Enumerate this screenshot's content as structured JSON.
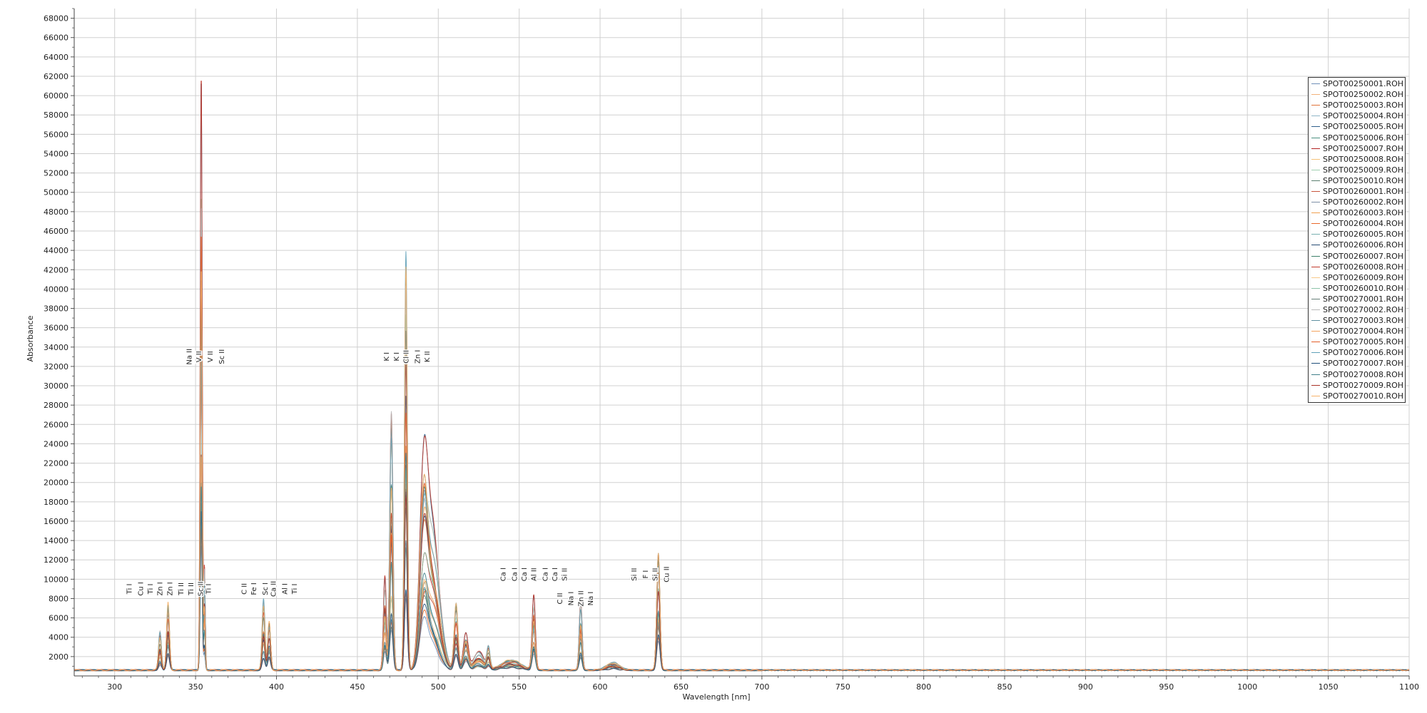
{
  "chart_data": {
    "type": "line",
    "xlabel": "Wavelength [nm]",
    "ylabel": "Absorbance",
    "xlim": [
      275,
      1100
    ],
    "ylim": [
      0,
      69000
    ],
    "x_ticks": [
      300,
      350,
      400,
      450,
      500,
      550,
      600,
      650,
      700,
      750,
      800,
      850,
      900,
      950,
      1000,
      1050,
      1100
    ],
    "y_ticks": [
      2000,
      4000,
      6000,
      8000,
      10000,
      12000,
      14000,
      16000,
      18000,
      20000,
      22000,
      24000,
      26000,
      28000,
      30000,
      32000,
      34000,
      36000,
      38000,
      40000,
      42000,
      44000,
      46000,
      48000,
      50000,
      52000,
      54000,
      56000,
      58000,
      60000,
      62000,
      64000,
      66000,
      68000
    ],
    "grid": true,
    "legend_position": "top-right",
    "baseline": 600,
    "series": [
      {
        "name": "SPOT00250001.ROH",
        "color": "#6f8fb8"
      },
      {
        "name": "SPOT00250002.ROH",
        "color": "#f2b27a"
      },
      {
        "name": "SPOT00250003.ROH",
        "color": "#e0733a"
      },
      {
        "name": "SPOT00250004.ROH",
        "color": "#8fb5c7"
      },
      {
        "name": "SPOT00250005.ROH",
        "color": "#2f5f8a"
      },
      {
        "name": "SPOT00250006.ROH",
        "color": "#4a8f7f"
      },
      {
        "name": "SPOT00250007.ROH",
        "color": "#b22222"
      },
      {
        "name": "SPOT00250008.ROH",
        "color": "#f5c27a"
      },
      {
        "name": "SPOT00250009.ROH",
        "color": "#9fd0b0"
      },
      {
        "name": "SPOT00250010.ROH",
        "color": "#5b7f6f"
      },
      {
        "name": "SPOT00260001.ROH",
        "color": "#c8553d"
      },
      {
        "name": "SPOT00260002.ROH",
        "color": "#7d8fa6"
      },
      {
        "name": "SPOT00260003.ROH",
        "color": "#f0a050"
      },
      {
        "name": "SPOT00260004.ROH",
        "color": "#e8682a"
      },
      {
        "name": "SPOT00260005.ROH",
        "color": "#78b0b0"
      },
      {
        "name": "SPOT00260006.ROH",
        "color": "#244b73"
      },
      {
        "name": "SPOT00260007.ROH",
        "color": "#3d7f6a"
      },
      {
        "name": "SPOT00260008.ROH",
        "color": "#c0392b"
      },
      {
        "name": "SPOT00260009.ROH",
        "color": "#f7c98a"
      },
      {
        "name": "SPOT00260010.ROH",
        "color": "#8cc3a8"
      },
      {
        "name": "SPOT00270001.ROH",
        "color": "#667f77"
      },
      {
        "name": "SPOT00270002.ROH",
        "color": "#b8b8b8"
      },
      {
        "name": "SPOT00270003.ROH",
        "color": "#5f8fa0"
      },
      {
        "name": "SPOT00270004.ROH",
        "color": "#f3a25e"
      },
      {
        "name": "SPOT00270005.ROH",
        "color": "#e35d2a"
      },
      {
        "name": "SPOT00270006.ROH",
        "color": "#5fa0b8"
      },
      {
        "name": "SPOT00270007.ROH",
        "color": "#1f4e79"
      },
      {
        "name": "SPOT00270008.ROH",
        "color": "#3f7f8a"
      },
      {
        "name": "SPOT00270009.ROH",
        "color": "#a93226"
      },
      {
        "name": "SPOT00270010.ROH",
        "color": "#f6b26b"
      }
    ],
    "peaks": [
      {
        "x": 328,
        "w": 0.9,
        "h": 4400
      },
      {
        "x": 333,
        "w": 0.9,
        "h": 8500
      },
      {
        "x": 353.5,
        "w": 0.6,
        "h": 65500
      },
      {
        "x": 355.5,
        "w": 0.5,
        "h": 11000
      },
      {
        "x": 392,
        "w": 0.9,
        "h": 8300
      },
      {
        "x": 395.5,
        "w": 0.9,
        "h": 6300
      },
      {
        "x": 467,
        "w": 0.9,
        "h": 10000
      },
      {
        "x": 471,
        "w": 1.0,
        "h": 28400
      },
      {
        "x": 480,
        "w": 0.9,
        "h": 50200
      },
      {
        "x": 491,
        "w": 2.5,
        "h": 24800
      },
      {
        "x": 496,
        "w": 3.0,
        "h": 11500
      },
      {
        "x": 500,
        "w": 3.5,
        "h": 6000
      },
      {
        "x": 511,
        "w": 1.2,
        "h": 8300
      },
      {
        "x": 517,
        "w": 1.5,
        "h": 4300
      },
      {
        "x": 525,
        "w": 3.0,
        "h": 2000
      },
      {
        "x": 531,
        "w": 1.0,
        "h": 2500
      },
      {
        "x": 545,
        "w": 6.0,
        "h": 1300
      },
      {
        "x": 559,
        "w": 1.0,
        "h": 8200
      },
      {
        "x": 588,
        "w": 0.9,
        "h": 7700
      },
      {
        "x": 608,
        "w": 4.0,
        "h": 900
      },
      {
        "x": 636,
        "w": 1.0,
        "h": 15500
      }
    ],
    "annotations": [
      {
        "x": 309,
        "y": 9000,
        "label": "Ti I"
      },
      {
        "x": 316,
        "y": 9000,
        "label": "Cu I"
      },
      {
        "x": 322,
        "y": 9000,
        "label": "Ti I"
      },
      {
        "x": 328,
        "y": 9000,
        "label": "Zn I"
      },
      {
        "x": 334,
        "y": 9000,
        "label": "Zn I"
      },
      {
        "x": 341,
        "y": 9000,
        "label": "Ti II"
      },
      {
        "x": 347,
        "y": 9000,
        "label": "Ti II"
      },
      {
        "x": 353,
        "y": 9000,
        "label": "Sc II"
      },
      {
        "x": 358,
        "y": 9000,
        "label": "Ti I"
      },
      {
        "x": 346,
        "y": 33000,
        "label": "Na II"
      },
      {
        "x": 352,
        "y": 33000,
        "label": "V II"
      },
      {
        "x": 359,
        "y": 33000,
        "label": "V II"
      },
      {
        "x": 366,
        "y": 33000,
        "label": "Sc II"
      },
      {
        "x": 380,
        "y": 9000,
        "label": "C II"
      },
      {
        "x": 386,
        "y": 9000,
        "label": "Fe I"
      },
      {
        "x": 393,
        "y": 9000,
        "label": "Sc I"
      },
      {
        "x": 398,
        "y": 9000,
        "label": "Ca II"
      },
      {
        "x": 405,
        "y": 9000,
        "label": "Al I"
      },
      {
        "x": 411,
        "y": 9000,
        "label": "Ti I"
      },
      {
        "x": 468,
        "y": 33000,
        "label": "K I"
      },
      {
        "x": 474,
        "y": 33000,
        "label": "K I"
      },
      {
        "x": 480,
        "y": 33000,
        "label": "Cl II"
      },
      {
        "x": 487,
        "y": 33000,
        "label": "Zn I"
      },
      {
        "x": 493,
        "y": 33000,
        "label": "K II"
      },
      {
        "x": 540,
        "y": 10500,
        "label": "Ca I"
      },
      {
        "x": 547,
        "y": 10500,
        "label": "Ca I"
      },
      {
        "x": 553,
        "y": 10500,
        "label": "Ca I"
      },
      {
        "x": 559,
        "y": 10500,
        "label": "Al II"
      },
      {
        "x": 566,
        "y": 10500,
        "label": "Ca I"
      },
      {
        "x": 572,
        "y": 10500,
        "label": "Ca I"
      },
      {
        "x": 578,
        "y": 10500,
        "label": "Si II"
      },
      {
        "x": 575,
        "y": 8000,
        "label": "C II"
      },
      {
        "x": 582,
        "y": 8000,
        "label": "Na I"
      },
      {
        "x": 588,
        "y": 8000,
        "label": "Zn II"
      },
      {
        "x": 594,
        "y": 8000,
        "label": "Na I"
      },
      {
        "x": 621,
        "y": 10500,
        "label": "Si II"
      },
      {
        "x": 628,
        "y": 10500,
        "label": "F I"
      },
      {
        "x": 634,
        "y": 10500,
        "label": "Si II"
      },
      {
        "x": 641,
        "y": 10500,
        "label": "Cu II"
      }
    ]
  }
}
